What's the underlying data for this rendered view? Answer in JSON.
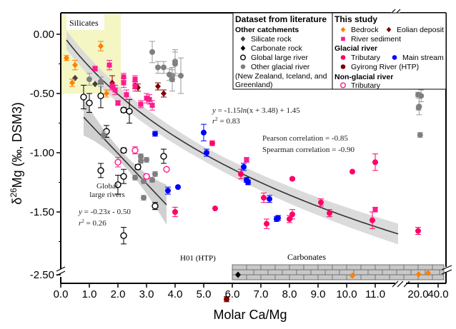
{
  "chart_data": {
    "type": "scatter",
    "title": "",
    "xlabel": "Molar Ca/Mg",
    "ylabel": "δ26Mg (‰, DSM3)",
    "ylabel_parts": {
      "delta": "δ",
      "sup": "26",
      "rest": "Mg (‰, DSM3)"
    },
    "x_ticks": [
      "0.0",
      "1.0",
      "2.0",
      "3.0",
      "4.0",
      "5.0",
      "6.0",
      "7.0",
      "8.0",
      "9.0",
      "10.0",
      "11.0",
      "20.0",
      "40.0"
    ],
    "y_ticks": [
      "0.00",
      "-0.50",
      "-1.00",
      "-1.50",
      "-2.50"
    ],
    "xlim": [
      0,
      40
    ],
    "ylim": [
      -2.5,
      0.1
    ],
    "x_axis_break": "between 11.0 and 20.0, and after 20.0",
    "y_axis_break": "between -1.75 and -2.50",
    "grid": false,
    "regions": [
      {
        "label": "Silicates",
        "x": [
          0,
          2.1
        ],
        "y": [
          -0.5,
          0.1
        ],
        "color": "#f4f6c4"
      },
      {
        "label": "Carbonates",
        "x": [
          6.0,
          40.0
        ],
        "y": [
          -2.52,
          -2.42
        ],
        "color": "#c8c8c8"
      }
    ],
    "fits": [
      {
        "name": "all-rivers-log-fit",
        "equation": "y = -1.15ln(x + 3.48) + 1.45",
        "eq_parts": {
          "y": "y",
          "eq": " = -1.15",
          "ln": "ln",
          "tail": "(x + 3.48) + 1.45"
        },
        "r2": "r² = 0.83",
        "r2_value": "0.83",
        "x_range": [
          0.2,
          11.8
        ],
        "band_color": "#d9d9d9"
      },
      {
        "name": "global-large-rivers-linear-fit",
        "equation": "y = -0.23x - 0.50",
        "eq_parts": {
          "y": "y",
          "rest": " = -0.23",
          "x": "x",
          "tail": " - 0.50"
        },
        "r2": "r² = 0.26",
        "r2_value": "0.26",
        "x_range": [
          0.8,
          3.7
        ],
        "band_color": "#c0c0c0"
      }
    ],
    "annotations": {
      "pearson": "Pearson correlation = -0.85",
      "spearman": "Spearman correlation = -0.90",
      "global_label_1": "Global",
      "global_label_2": "large rivers",
      "h01": "H01 (HTP)",
      "silicates": "Silicates",
      "carbonates": "Carbonates"
    },
    "series": [
      {
        "name": "Silicate rock",
        "group": "literature",
        "marker": "diamond",
        "color": "#404040",
        "points": [
          [
            0.5,
            -0.37
          ],
          [
            1.2,
            -0.42
          ]
        ]
      },
      {
        "name": "Carbonate rock",
        "group": "literature",
        "marker": "diamond",
        "color": "#000000",
        "points": [
          [
            6.2,
            -2.5
          ]
        ]
      },
      {
        "name": "Global large river",
        "group": "literature",
        "marker": "open-circle",
        "color": "#000000",
        "points": [
          [
            0.8,
            -0.53
          ],
          [
            1.0,
            -0.58
          ],
          [
            1.4,
            -0.52
          ],
          [
            1.6,
            -0.82
          ],
          [
            2.2,
            -0.64
          ],
          [
            2.4,
            -0.65
          ],
          [
            2.2,
            -0.98
          ],
          [
            1.4,
            -1.15
          ],
          [
            2.2,
            -1.2
          ],
          [
            2.0,
            -1.27
          ],
          [
            2.7,
            -1.12
          ],
          [
            3.6,
            -1.03
          ],
          [
            3.3,
            -1.45
          ],
          [
            2.2,
            -1.7
          ]
        ],
        "err": [
          0.1,
          0.08,
          0.1,
          0.05,
          0.02,
          0.1,
          0.02,
          0.06,
          0.06,
          0.08,
          0.02,
          0.06,
          0.03,
          0.07
        ]
      },
      {
        "name": "Other glacial river",
        "group": "literature",
        "marker": "circle",
        "color": "#7f7f7f",
        "points": [
          [
            1.0,
            -0.38
          ],
          [
            1.4,
            -0.4
          ],
          [
            3.2,
            -0.15
          ],
          [
            3.4,
            -0.28
          ],
          [
            3.6,
            -0.28
          ],
          [
            3.8,
            -0.34
          ],
          [
            3.9,
            -0.35
          ],
          [
            3.9,
            -0.38
          ],
          [
            4.0,
            -0.23
          ],
          [
            4.0,
            -0.25
          ],
          [
            4.2,
            -0.35
          ],
          [
            1.5,
            -0.85
          ],
          [
            2.8,
            -1.03
          ],
          [
            2.8,
            -1.07
          ],
          [
            3.0,
            -1.06
          ],
          [
            3.3,
            -1.18
          ],
          [
            3.2,
            -1.23
          ],
          [
            2.9,
            -1.24
          ],
          [
            2.6,
            -1.21
          ],
          [
            2.9,
            -1.38
          ],
          [
            20.0,
            -0.51
          ],
          [
            20.5,
            -0.62
          ],
          [
            21.0,
            -0.61
          ],
          [
            22.0,
            -0.85
          ],
          [
            23.0,
            -0.52
          ]
        ],
        "err": [
          0.05,
          0.04,
          0.09,
          0.05,
          0.05,
          0.05,
          0.05,
          0.1,
          0.1,
          0.1,
          0.15,
          0.03,
          0.02,
          0.02,
          0.02,
          0.02,
          0.02,
          0.02,
          0.02,
          0.02,
          0.02,
          0.02,
          0.07,
          0.02,
          0.05
        ]
      },
      {
        "name": "Bedrock",
        "group": "this-study",
        "marker": "diamond",
        "color": "#ff7f00",
        "points": [
          [
            0.2,
            -0.2
          ],
          [
            0.5,
            -0.26
          ],
          [
            1.4,
            -0.1
          ],
          [
            0.4,
            -0.41
          ],
          [
            1.6,
            -0.5
          ],
          [
            10.2,
            -2.48
          ],
          [
            20.5,
            -2.51
          ],
          [
            30.0,
            -2.54
          ]
        ],
        "err": [
          0.02,
          0.04,
          0.04,
          0.03,
          0.03,
          0,
          0,
          0
        ]
      },
      {
        "name": "Eolian deposit",
        "group": "this-study",
        "marker": "diamond",
        "color": "#7f0000",
        "points": [
          [
            1.8,
            -0.41
          ],
          [
            2.6,
            -0.43
          ],
          [
            2.7,
            -0.45
          ],
          [
            3.4,
            -0.44
          ],
          [
            3.6,
            -0.5
          ]
        ],
        "err": [
          0.06,
          0.03,
          0.03,
          0.03,
          0.03
        ]
      },
      {
        "name": "River sediment",
        "group": "this-study",
        "marker": "square",
        "color": "#ff1a8c",
        "points": [
          [
            1.2,
            -0.29
          ],
          [
            1.7,
            -0.26
          ],
          [
            1.8,
            -0.44
          ],
          [
            1.9,
            -0.47
          ],
          [
            2.0,
            -0.58
          ],
          [
            2.2,
            -0.36
          ],
          [
            2.2,
            -0.41
          ],
          [
            2.3,
            -0.51
          ],
          [
            2.6,
            -0.38
          ],
          [
            2.6,
            -0.44
          ],
          [
            2.8,
            -0.59
          ],
          [
            3.0,
            -0.54
          ],
          [
            3.1,
            -0.55
          ],
          [
            3.2,
            -0.6
          ],
          [
            6.5,
            -1.06
          ],
          [
            11.0,
            -1.48
          ]
        ],
        "err": [
          0.02,
          0.04,
          0.03,
          0.04,
          0.02,
          0.03,
          0.04,
          0.04,
          0.03,
          0.04,
          0.03,
          0.04,
          0.04,
          0.04,
          0.02,
          0.02
        ]
      },
      {
        "name": "Glacial tributary",
        "group": "this-study",
        "marker": "circle",
        "color": "#ff0066",
        "points": [
          [
            4.0,
            -1.5
          ],
          [
            5.3,
            -0.92
          ],
          [
            5.4,
            -1.47
          ],
          [
            6.3,
            -1.18
          ],
          [
            7.1,
            -1.38
          ],
          [
            7.2,
            -1.6
          ],
          [
            8.0,
            -1.56
          ],
          [
            8.1,
            -1.52
          ],
          [
            8.1,
            -1.22
          ],
          [
            9.1,
            -1.42
          ],
          [
            9.4,
            -1.51
          ],
          [
            10.2,
            -1.16
          ],
          [
            10.9,
            -1.57
          ],
          [
            11.0,
            -1.08
          ],
          [
            20.0,
            -1.66
          ]
        ],
        "err": [
          0.04,
          0.02,
          0,
          0.04,
          0.04,
          0.04,
          0.03,
          0.04,
          0.01,
          0.03,
          0.03,
          0,
          0.07,
          0.07,
          0.03
        ]
      },
      {
        "name": "Main stream",
        "group": "this-study",
        "marker": "circle",
        "color": "#0000ff",
        "points": [
          [
            3.3,
            -0.84
          ],
          [
            3.75,
            -1.32
          ],
          [
            4.1,
            -1.29
          ],
          [
            5.0,
            -0.83
          ],
          [
            5.1,
            -1.0
          ],
          [
            6.4,
            -1.12
          ],
          [
            6.5,
            -1.23
          ],
          [
            6.55,
            -1.25
          ],
          [
            7.3,
            -1.39
          ],
          [
            7.55,
            -1.56
          ],
          [
            7.6,
            -1.55
          ]
        ],
        "err": [
          0.02,
          0.03,
          0,
          0.07,
          0.03,
          0.03,
          0.02,
          0.02,
          0.03,
          0.02,
          0.02
        ]
      },
      {
        "name": "Gyirong River (HTP)",
        "group": "this-study",
        "marker": "circle",
        "color": "#7f0000",
        "points": [
          [
            5.8,
            -1.93
          ]
        ],
        "err": [
          0.06
        ]
      },
      {
        "name": "Non-glacial tributary",
        "group": "this-study",
        "marker": "open-circle",
        "color": "#ff1a8c",
        "points": [
          [
            2.0,
            -1.08
          ],
          [
            2.6,
            -0.98
          ],
          [
            3.0,
            -1.2
          ],
          [
            3.7,
            -1.14
          ]
        ],
        "err": [
          0.04,
          0.03,
          0.02,
          0
        ]
      }
    ],
    "legend": {
      "placement": "top-right",
      "left_title": "Dataset from literature",
      "left_sub": "Other catchments",
      "left_items": [
        {
          "label": "Silicate rock",
          "marker": "diamond",
          "color": "#404040"
        },
        {
          "label": "Carbonate rock",
          "marker": "diamond",
          "color": "#000000"
        },
        {
          "label": "Global large river",
          "marker": "open-circle",
          "color": "#000000"
        },
        {
          "label": "Other glacial river",
          "marker": "circle",
          "color": "#7f7f7f"
        }
      ],
      "left_note_1": "(New  Zealand, Iceland, and",
      "left_note_2": "Greenland)",
      "right_title": "This study",
      "right_row1": [
        {
          "label": "Bedrock",
          "marker": "diamond",
          "color": "#ff7f00"
        },
        {
          "label": "Eolian deposit",
          "marker": "diamond",
          "color": "#7f0000"
        }
      ],
      "right_row2": {
        "label": "River sediment",
        "marker": "square",
        "color": "#ff1a8c"
      },
      "right_sub1": "Glacial river",
      "right_row3": [
        {
          "label": "Tributary",
          "marker": "circle",
          "color": "#ff0066"
        },
        {
          "label": "Main stream",
          "marker": "circle",
          "color": "#0000ff"
        }
      ],
      "right_row4": {
        "label": "Gyirong River (HTP)",
        "marker": "circle",
        "color": "#7f0000"
      },
      "right_sub2": "Non-glacial river",
      "right_row5": {
        "label": "Tributary",
        "marker": "open-circle",
        "color": "#ff1a8c"
      }
    }
  }
}
